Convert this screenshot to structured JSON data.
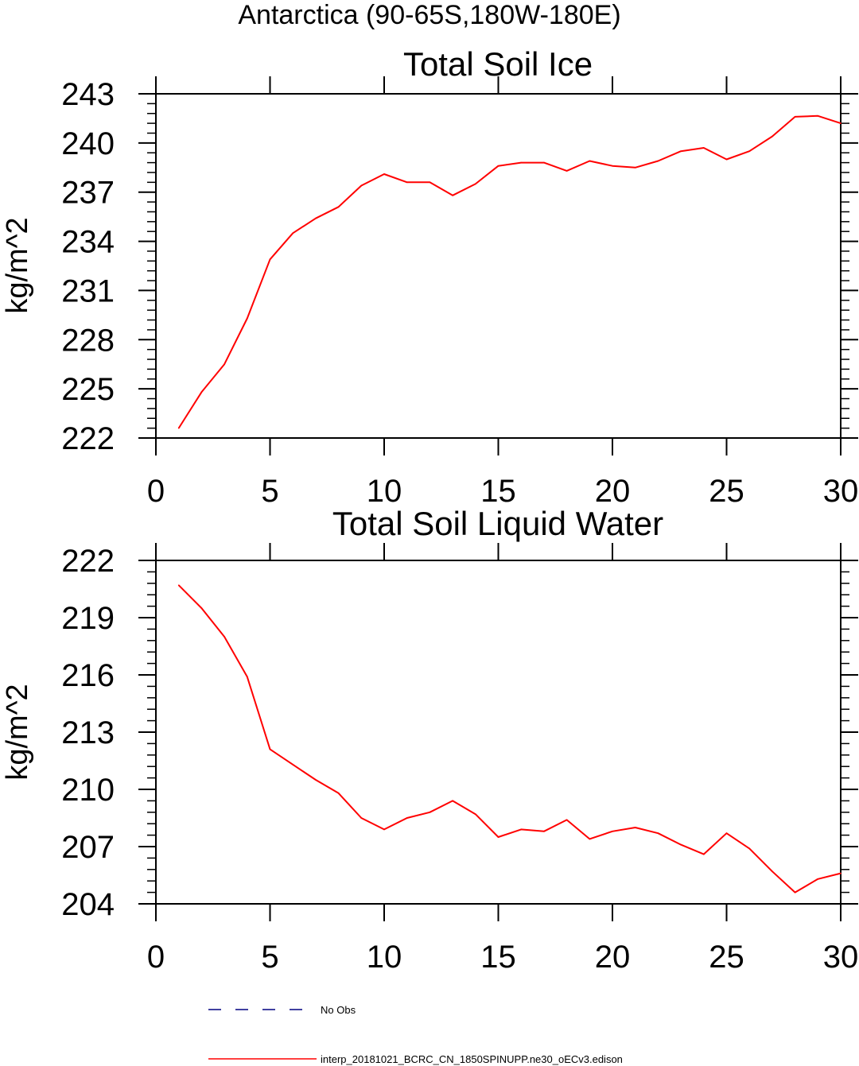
{
  "page_title": "Antarctica (90-65S,180W-180E)",
  "chart_data": [
    {
      "type": "line",
      "title": "Total Soil Ice",
      "xlabel": "",
      "ylabel": "kg/m^2",
      "xlim": [
        0,
        30
      ],
      "ylim": [
        222,
        243
      ],
      "xticks": [
        0,
        5,
        10,
        15,
        20,
        25,
        30
      ],
      "yticks": [
        222,
        225,
        228,
        231,
        234,
        237,
        240,
        243
      ],
      "grid": false,
      "series": [
        {
          "name": "interp_20181021_BCRC_CN_1850SPINUPP.ne30_oECv3.edison",
          "color": "#ff0000",
          "x": [
            1,
            2,
            3,
            4,
            5,
            6,
            7,
            8,
            9,
            10,
            11,
            12,
            13,
            14,
            15,
            16,
            17,
            18,
            19,
            20,
            21,
            22,
            23,
            24,
            25,
            26,
            27,
            28,
            29,
            30
          ],
          "values": [
            222.6,
            224.8,
            226.5,
            229.3,
            232.9,
            234.5,
            235.4,
            236.1,
            237.4,
            238.1,
            237.6,
            237.6,
            236.8,
            237.5,
            238.6,
            238.8,
            238.8,
            238.3,
            238.9,
            238.6,
            238.5,
            238.9,
            239.5,
            239.7,
            239.0,
            239.5,
            240.4,
            241.6,
            241.65,
            241.2
          ]
        }
      ]
    },
    {
      "type": "line",
      "title": "Total Soil Liquid Water",
      "xlabel": "",
      "ylabel": "kg/m^2",
      "xlim": [
        0,
        30
      ],
      "ylim": [
        204,
        222
      ],
      "xticks": [
        0,
        5,
        10,
        15,
        20,
        25,
        30
      ],
      "yticks": [
        204,
        207,
        210,
        213,
        216,
        219,
        222
      ],
      "grid": false,
      "series": [
        {
          "name": "interp_20181021_BCRC_CN_1850SPINUPP.ne30_oECv3.edison",
          "color": "#ff0000",
          "x": [
            1,
            2,
            3,
            4,
            5,
            6,
            7,
            8,
            9,
            10,
            11,
            12,
            13,
            14,
            15,
            16,
            17,
            18,
            19,
            20,
            21,
            22,
            23,
            24,
            25,
            26,
            27,
            28,
            29,
            30
          ],
          "values": [
            220.7,
            219.5,
            218.0,
            215.9,
            212.1,
            211.3,
            210.5,
            209.8,
            208.5,
            207.9,
            208.5,
            208.8,
            209.4,
            208.7,
            207.5,
            207.9,
            207.8,
            208.4,
            207.4,
            207.8,
            208.0,
            207.7,
            207.1,
            206.6,
            207.7,
            206.9,
            205.7,
            204.6,
            205.3,
            205.6
          ]
        }
      ]
    }
  ],
  "legend": {
    "placement": "bottom",
    "entries": [
      {
        "label": "No Obs",
        "color": "#000080",
        "style": "dashed"
      },
      {
        "label": "interp_20181021_BCRC_CN_1850SPINUPP.ne30_oECv3.edison",
        "color": "#ff0000",
        "style": "solid"
      }
    ]
  }
}
